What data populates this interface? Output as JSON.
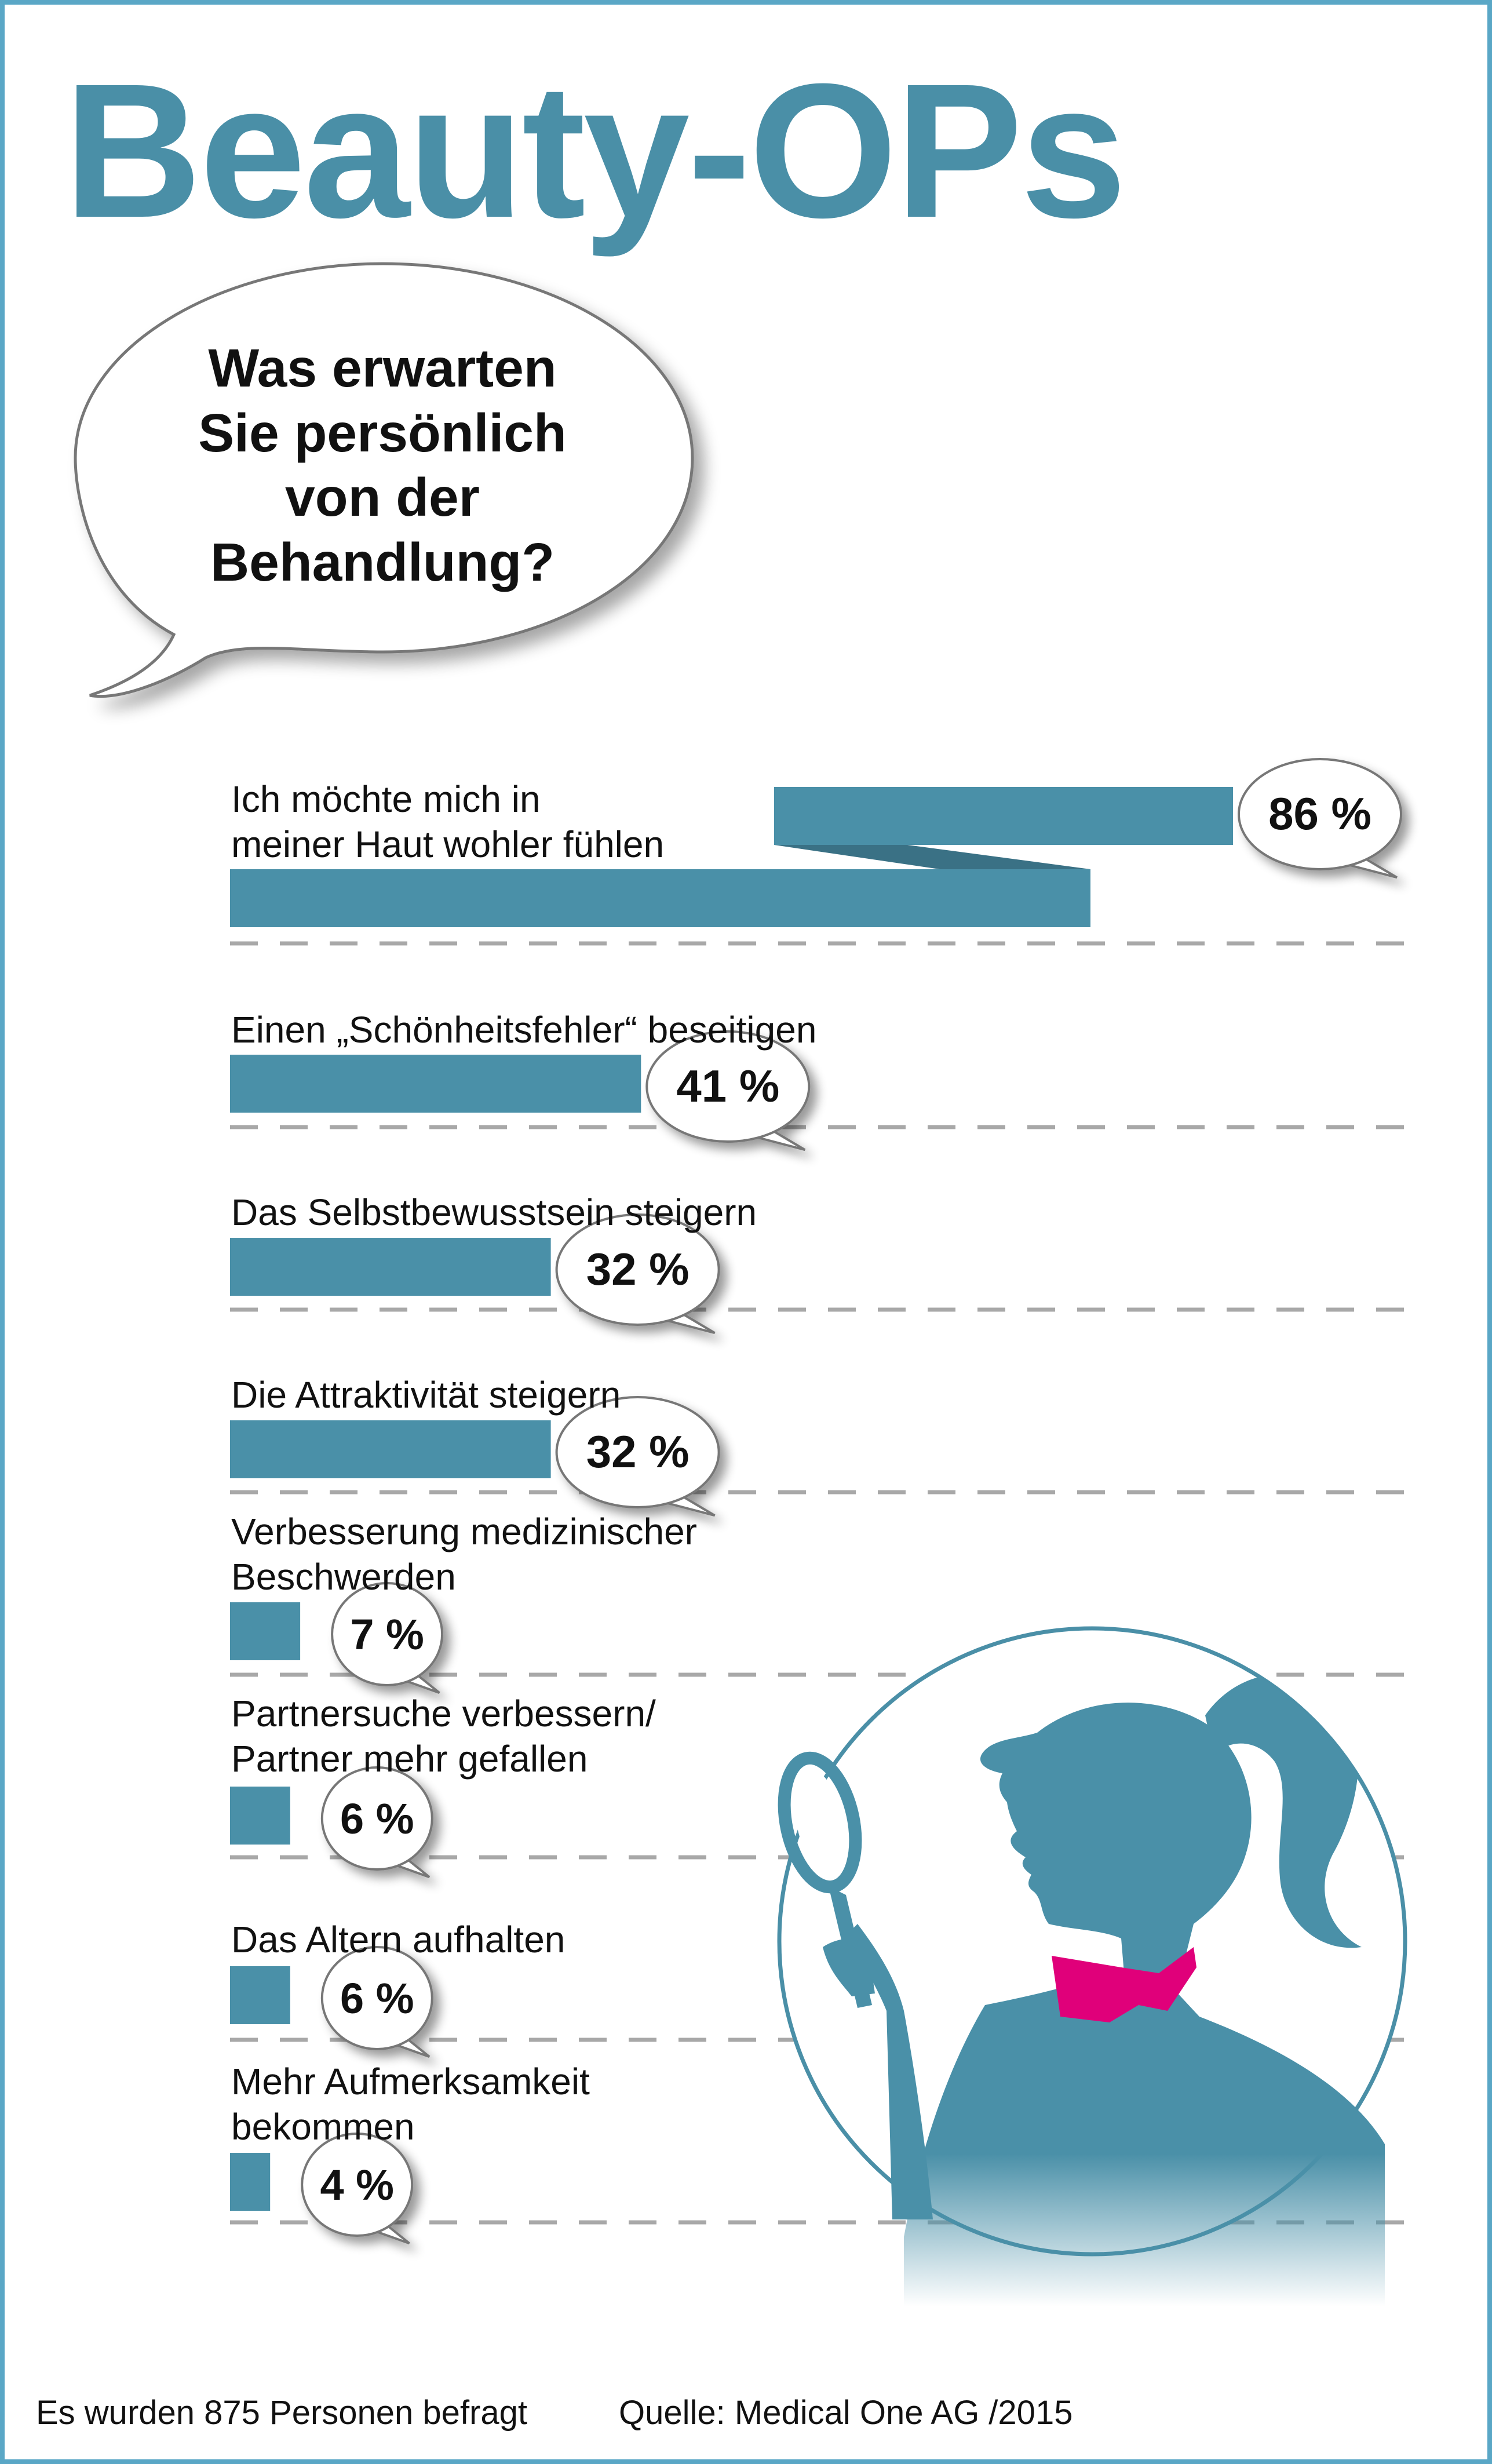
{
  "title": "Beauty-OPs",
  "question": "Was erwarten Sie persönlich von der Behandlung?",
  "question_lines": [
    "Was erwarten",
    "Sie persönlich",
    "von der",
    "Behandlung?"
  ],
  "colors": {
    "accent": "#4a8fa7",
    "bar": "#4a90a8",
    "bar_dark": "#3a7185",
    "collar": "#e0007a",
    "frame": "#5aa7c6"
  },
  "chart_data": {
    "type": "bar",
    "orientation": "horizontal",
    "unit": "%",
    "categories": [
      "Ich möchte mich in meiner Haut wohler fühlen",
      "Einen „Schönheitsfehler“ beseitigen",
      "Das Selbstbewusstsein steigern",
      "Die Attraktivität steigern",
      "Verbesserung medizinischer Beschwerden",
      "Partnersuche verbessern/ Partner mehr gefallen",
      "Das Altern aufhalten",
      "Mehr Aufmerksamkeit bekommen"
    ],
    "label_lines": [
      [
        "Ich möchte mich in",
        "meiner Haut wohler fühlen"
      ],
      [
        "Einen „Schönheitsfehler“ beseitigen"
      ],
      [
        "Das Selbstbewusstsein steigern"
      ],
      [
        "Die Attraktivität steigern"
      ],
      [
        "Verbesserung medizinischer",
        "Beschwerden"
      ],
      [
        "Partnersuche verbessern/",
        "Partner mehr gefallen"
      ],
      [
        "Das Altern aufhalten"
      ],
      [
        "Mehr Aufmerksamkeit",
        "bekommen"
      ]
    ],
    "values": [
      86,
      41,
      32,
      32,
      7,
      6,
      6,
      4
    ],
    "value_labels": [
      "86 %",
      "41 %",
      "32 %",
      "32 %",
      "7 %",
      "6 %",
      "6 %",
      "4 %"
    ],
    "xlim": [
      0,
      100
    ],
    "grid": "dashed separators"
  },
  "footer": {
    "note": "Es wurden 875 Personen befragt",
    "source": "Quelle: Medical One AG /2015"
  },
  "illustration": {
    "icon": "woman-with-hand-mirror-icon"
  }
}
